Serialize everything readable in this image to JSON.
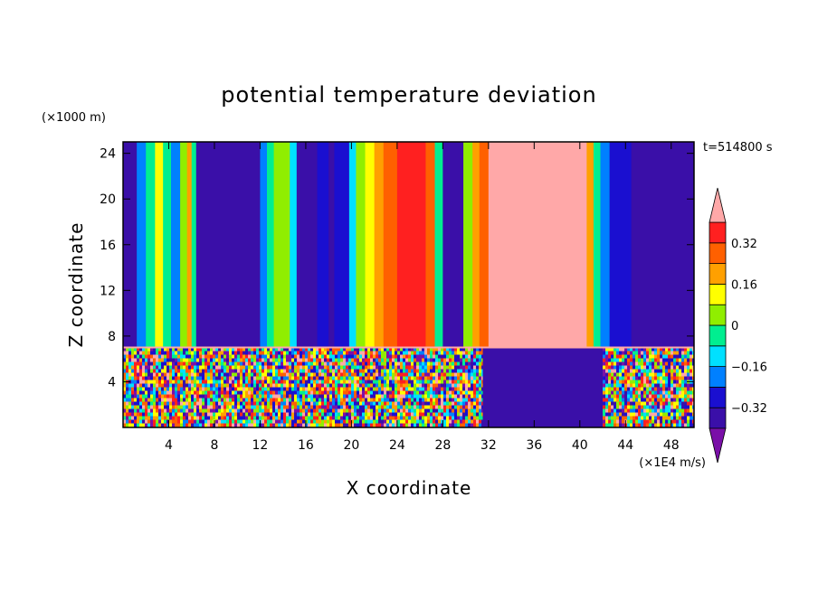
{
  "chart_data": {
    "type": "heatmap",
    "title": "potential temperature deviation",
    "xlabel": "X coordinate",
    "ylabel": "Z coordinate",
    "x_unit": "(×1E4 m/s)",
    "y_unit": "(×1000 m)",
    "time_label": "t=514800 s",
    "xlim": [
      0,
      50
    ],
    "ylim": [
      0,
      25
    ],
    "x_ticks": [
      4,
      8,
      12,
      16,
      20,
      24,
      28,
      32,
      36,
      40,
      44,
      48
    ],
    "y_ticks": [
      4,
      8,
      12,
      16,
      20,
      24
    ],
    "colorbar": {
      "levels": [
        -0.4,
        -0.32,
        -0.24,
        -0.16,
        -0.08,
        0,
        0.08,
        0.16,
        0.24,
        0.32,
        0.4
      ],
      "tick_labels": [
        "-0.32",
        "-0.16",
        "0",
        "0.16",
        "0.32"
      ],
      "tick_values": [
        -0.32,
        -0.16,
        0,
        0.16,
        0.32
      ],
      "colors": [
        "#7a0fa8",
        "#3a0fa8",
        "#1a0fd0",
        "#0080ff",
        "#00e0ff",
        "#00ee90",
        "#90ee00",
        "#ffff00",
        "#ffa000",
        "#ff6000",
        "#ff2020",
        "#ffa8a8"
      ],
      "extend": "both"
    },
    "upper_columns": [
      {
        "x0": 0.0,
        "x1": 1.2,
        "value": -0.36
      },
      {
        "x0": 1.2,
        "x1": 2.0,
        "value": -0.2
      },
      {
        "x0": 2.0,
        "x1": 2.8,
        "value": -0.04
      },
      {
        "x0": 2.8,
        "x1": 3.5,
        "value": 0.12
      },
      {
        "x0": 3.5,
        "x1": 4.2,
        "value": -0.04
      },
      {
        "x0": 4.2,
        "x1": 5.0,
        "value": -0.2
      },
      {
        "x0": 5.0,
        "x1": 5.6,
        "value": 0.04
      },
      {
        "x0": 5.6,
        "x1": 6.0,
        "value": 0.2
      },
      {
        "x0": 6.0,
        "x1": 6.4,
        "value": -0.04
      },
      {
        "x0": 6.4,
        "x1": 12.0,
        "value": -0.36
      },
      {
        "x0": 12.0,
        "x1": 12.6,
        "value": -0.2
      },
      {
        "x0": 12.6,
        "x1": 13.2,
        "value": -0.04
      },
      {
        "x0": 13.2,
        "x1": 14.6,
        "value": 0.04
      },
      {
        "x0": 14.6,
        "x1": 15.2,
        "value": -0.12
      },
      {
        "x0": 15.2,
        "x1": 17.0,
        "value": -0.36
      },
      {
        "x0": 17.0,
        "x1": 18.0,
        "value": -0.28
      },
      {
        "x0": 18.0,
        "x1": 18.5,
        "value": -0.36
      },
      {
        "x0": 18.5,
        "x1": 19.8,
        "value": -0.28
      },
      {
        "x0": 19.8,
        "x1": 20.4,
        "value": -0.12
      },
      {
        "x0": 20.4,
        "x1": 21.2,
        "value": 0.04
      },
      {
        "x0": 21.2,
        "x1": 22.0,
        "value": 0.12
      },
      {
        "x0": 22.0,
        "x1": 22.8,
        "value": 0.2
      },
      {
        "x0": 22.8,
        "x1": 24.0,
        "value": 0.28
      },
      {
        "x0": 24.0,
        "x1": 26.5,
        "value": 0.36
      },
      {
        "x0": 26.5,
        "x1": 27.3,
        "value": 0.28
      },
      {
        "x0": 27.3,
        "x1": 28.0,
        "value": -0.04
      },
      {
        "x0": 28.0,
        "x1": 29.8,
        "value": -0.36
      },
      {
        "x0": 29.8,
        "x1": 30.6,
        "value": 0.04
      },
      {
        "x0": 30.6,
        "x1": 31.2,
        "value": 0.2
      },
      {
        "x0": 31.2,
        "x1": 32.0,
        "value": 0.28
      },
      {
        "x0": 32.0,
        "x1": 40.6,
        "value": 0.44
      },
      {
        "x0": 40.6,
        "x1": 41.2,
        "value": 0.2
      },
      {
        "x0": 41.2,
        "x1": 41.8,
        "value": -0.04
      },
      {
        "x0": 41.8,
        "x1": 42.6,
        "value": -0.2
      },
      {
        "x0": 42.6,
        "x1": 44.5,
        "value": -0.28
      },
      {
        "x0": 44.5,
        "x1": 50.0,
        "value": -0.36
      }
    ],
    "boundary_layer_top": 7,
    "lower_regions": [
      {
        "x0": 0.0,
        "x1": 31.5,
        "pattern": "turbulent"
      },
      {
        "x0": 31.5,
        "x1": 42.0,
        "value": -0.36
      },
      {
        "x0": 42.0,
        "x1": 50.0,
        "pattern": "turbulent"
      }
    ]
  }
}
